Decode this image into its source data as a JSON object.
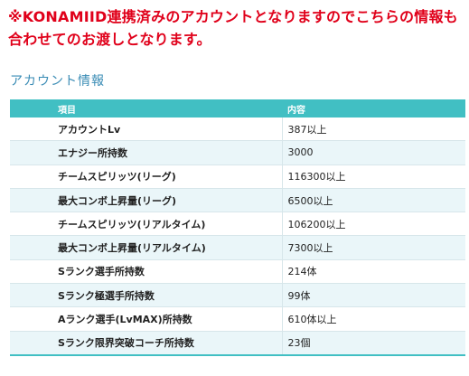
{
  "notice": {
    "line1": "※KONAMIID連携済みのアカウントとなりますのでこちらの情報も",
    "line2": "合わせてのお渡しとなります。",
    "color": "#e0001a"
  },
  "section": {
    "title": "アカウント情報",
    "color": "#3a8cb5"
  },
  "table": {
    "header_color": "#41bfc3",
    "headers": {
      "item": "項目",
      "value": "内容"
    },
    "rows": [
      {
        "item": "アカウントLv",
        "value": "387以上"
      },
      {
        "item": "エナジー所持数",
        "value": "3000"
      },
      {
        "item": "チームスピリッツ(リーグ)",
        "value": "116300以上"
      },
      {
        "item": "最大コンボ上昇量(リーグ)",
        "value": "6500以上"
      },
      {
        "item": "チームスピリッツ(リアルタイム)",
        "value": "106200以上"
      },
      {
        "item": "最大コンボ上昇量(リアルタイム)",
        "value": "7300以上"
      },
      {
        "item": "Sランク選手所持数",
        "value": "214体"
      },
      {
        "item": "Sランク極選手所持数",
        "value": "99体"
      },
      {
        "item": "Aランク選手(LvMAX)所持数",
        "value": "610体以上"
      },
      {
        "item": "Sランク限界突破コーチ所持数",
        "value": "23個"
      }
    ]
  }
}
